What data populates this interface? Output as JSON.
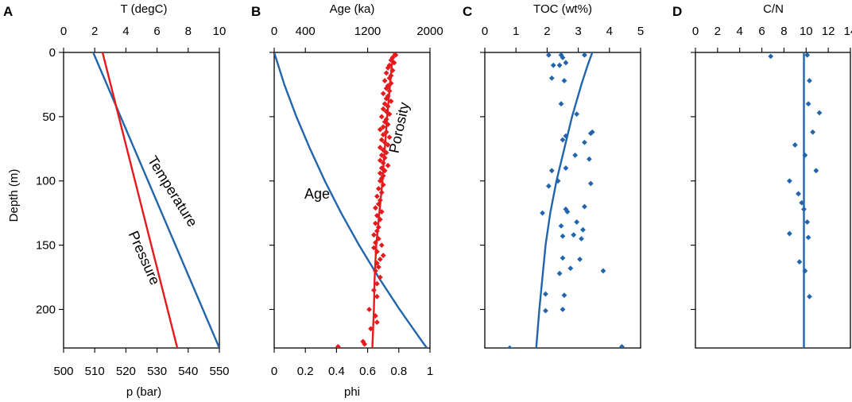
{
  "colors": {
    "blue": "#2166ac",
    "red": "#e41a1c",
    "axis": "#000000"
  },
  "shared": {
    "depth_axis": {
      "label": "Depth (m)",
      "range": [
        0,
        230
      ],
      "ticks": [
        0,
        50,
        100,
        150,
        200
      ]
    }
  },
  "chart_data": [
    {
      "panel": "A",
      "type": "line",
      "top_axis": {
        "label": "T (degC)",
        "range": [
          0,
          10
        ],
        "ticks": [
          0,
          2,
          4,
          6,
          8,
          10
        ],
        "tick_labels": [
          "0",
          "2",
          "4",
          "6",
          "8",
          "10"
        ]
      },
      "bottom_axis": {
        "label": "p (bar)",
        "range": [
          500,
          550
        ],
        "ticks": [
          500,
          510,
          520,
          530,
          540,
          550
        ],
        "tick_labels": [
          "500",
          "510",
          "520",
          "530",
          "540",
          "550"
        ]
      },
      "series": [
        {
          "name": "Temperature",
          "axis": "top",
          "color": "blue",
          "depth": [
            0,
            230
          ],
          "values": [
            1.9,
            10.0
          ]
        },
        {
          "name": "Pressure",
          "axis": "bottom",
          "color": "red",
          "depth": [
            0,
            230
          ],
          "values": [
            512.5,
            536.5
          ]
        }
      ],
      "annotations": [
        {
          "text": "Temperature",
          "series": "Temperature"
        },
        {
          "text": "Pressure",
          "series": "Pressure"
        }
      ]
    },
    {
      "panel": "B",
      "type": "line",
      "top_axis": {
        "label": "Age (ka)",
        "range": [
          0,
          2000
        ],
        "ticks": [
          0,
          400,
          1200,
          2000
        ],
        "tick_labels": [
          "0",
          "400",
          "1200",
          "2000"
        ]
      },
      "bottom_axis": {
        "label": "phi",
        "range": [
          0,
          1
        ],
        "ticks": [
          0,
          0.2,
          0.4,
          0.6,
          0.8,
          1
        ],
        "tick_labels": [
          "0",
          "0.2",
          "0.4",
          "0.6",
          "0.8",
          "1"
        ]
      },
      "series": [
        {
          "name": "Age",
          "axis": "top",
          "color": "blue",
          "depth": [
            0,
            25,
            50,
            75,
            100,
            125,
            150,
            175,
            200,
            225,
            230
          ],
          "values": [
            0,
            130,
            285,
            460,
            650,
            860,
            1090,
            1340,
            1610,
            1900,
            1960
          ]
        },
        {
          "name": "Porosity",
          "axis": "bottom",
          "color": "red",
          "mode": "line",
          "depth": [
            0,
            10,
            30,
            50,
            75,
            100,
            125,
            150,
            175,
            200,
            230
          ],
          "values": [
            0.77,
            0.755,
            0.74,
            0.725,
            0.71,
            0.695,
            0.675,
            0.655,
            0.645,
            0.64,
            0.63
          ]
        },
        {
          "name": "Porosity samples",
          "axis": "bottom",
          "color": "red",
          "mode": "markers",
          "depth": [
            2,
            4,
            6,
            8,
            10,
            12,
            14,
            16,
            18,
            20,
            22,
            24,
            26,
            28,
            30,
            32,
            34,
            36,
            38,
            40,
            42,
            44,
            46,
            48,
            50,
            52,
            54,
            56,
            58,
            60,
            62,
            64,
            66,
            68,
            70,
            72,
            74,
            76,
            78,
            80,
            82,
            84,
            86,
            88,
            90,
            92,
            94,
            96,
            98,
            100,
            103,
            106,
            109,
            112,
            115,
            118,
            121,
            124,
            127,
            130,
            133,
            136,
            139,
            142,
            145,
            148,
            150,
            152,
            155,
            158,
            161,
            164,
            167,
            170,
            175,
            180,
            185,
            190,
            200,
            205,
            210,
            215,
            225,
            227,
            229
          ],
          "values": [
            0.78,
            0.76,
            0.75,
            0.77,
            0.74,
            0.73,
            0.76,
            0.72,
            0.75,
            0.74,
            0.71,
            0.75,
            0.73,
            0.72,
            0.74,
            0.7,
            0.73,
            0.72,
            0.75,
            0.71,
            0.73,
            0.7,
            0.72,
            0.74,
            0.69,
            0.72,
            0.71,
            0.73,
            0.7,
            0.68,
            0.72,
            0.7,
            0.74,
            0.69,
            0.71,
            0.73,
            0.68,
            0.7,
            0.72,
            0.69,
            0.71,
            0.68,
            0.7,
            0.73,
            0.69,
            0.71,
            0.68,
            0.7,
            0.69,
            0.68,
            0.7,
            0.67,
            0.69,
            0.66,
            0.68,
            0.67,
            0.65,
            0.69,
            0.66,
            0.68,
            0.65,
            0.67,
            0.66,
            0.64,
            0.67,
            0.65,
            0.69,
            0.64,
            0.66,
            0.7,
            0.68,
            0.66,
            0.67,
            0.65,
            0.68,
            0.66,
            0.64,
            0.66,
            0.61,
            0.65,
            0.66,
            0.62,
            0.57,
            0.58,
            0.41
          ]
        }
      ],
      "annotations": [
        {
          "text": "Age",
          "series": "Age"
        },
        {
          "text": "Porosity",
          "series": "Porosity"
        }
      ]
    },
    {
      "panel": "C",
      "type": "scatter",
      "top_axis": {
        "label": "TOC (wt%)",
        "range": [
          0,
          5
        ],
        "ticks": [
          0,
          1,
          2,
          3,
          4,
          5
        ],
        "tick_labels": [
          "0",
          "1",
          "2",
          "3",
          "4",
          "5"
        ]
      },
      "series": [
        {
          "name": "TOC model",
          "axis": "top",
          "color": "blue",
          "mode": "line",
          "depth": [
            0,
            10,
            25,
            50,
            75,
            100,
            125,
            150,
            175,
            200,
            230
          ],
          "values": [
            3.45,
            3.3,
            3.1,
            2.8,
            2.55,
            2.3,
            2.1,
            1.95,
            1.85,
            1.75,
            1.65
          ]
        },
        {
          "name": "TOC samples",
          "axis": "top",
          "color": "blue",
          "mode": "markers",
          "depth": [
            2,
            2,
            2,
            4,
            8,
            10,
            10,
            20,
            22,
            40,
            48,
            62,
            63,
            65,
            68,
            70,
            80,
            83,
            90,
            92,
            100,
            102,
            104,
            120,
            122,
            124,
            125,
            132,
            135,
            138,
            142,
            143,
            145,
            160,
            161,
            168,
            170,
            172,
            188,
            189,
            200,
            201,
            229,
            230
          ],
          "values": [
            2.05,
            2.45,
            3.2,
            2.5,
            2.6,
            2.2,
            2.4,
            2.15,
            2.55,
            2.45,
            2.95,
            3.45,
            3.4,
            2.6,
            2.5,
            3.2,
            2.9,
            3.35,
            2.6,
            2.15,
            2.35,
            3.4,
            2.05,
            3.2,
            2.6,
            2.65,
            1.85,
            2.95,
            2.45,
            3.15,
            2.85,
            2.5,
            3.1,
            2.5,
            3.05,
            2.75,
            3.8,
            2.4,
            1.95,
            2.55,
            2.5,
            1.95,
            4.4,
            0.8
          ]
        }
      ]
    },
    {
      "panel": "D",
      "type": "scatter",
      "top_axis": {
        "label": "C/N",
        "range": [
          0,
          14
        ],
        "ticks": [
          0,
          2,
          4,
          6,
          8,
          10,
          12,
          14
        ],
        "tick_labels": [
          "0",
          "2",
          "4",
          "6",
          "8",
          "10",
          "12",
          "14"
        ]
      },
      "series": [
        {
          "name": "C/N model",
          "axis": "top",
          "color": "blue",
          "mode": "line",
          "depth": [
            0,
            230
          ],
          "values": [
            9.8,
            9.8
          ]
        },
        {
          "name": "C/N samples",
          "axis": "top",
          "color": "blue",
          "mode": "markers",
          "depth": [
            2,
            3,
            22,
            40,
            47,
            62,
            72,
            80,
            92,
            100,
            110,
            117,
            122,
            132,
            141,
            144,
            163,
            170,
            190
          ],
          "values": [
            10.1,
            6.8,
            10.3,
            10.2,
            11.2,
            10.6,
            9.0,
            9.9,
            10.9,
            8.5,
            9.3,
            9.6,
            9.8,
            10.1,
            8.5,
            10.2,
            9.4,
            9.9,
            10.3
          ]
        }
      ]
    }
  ]
}
